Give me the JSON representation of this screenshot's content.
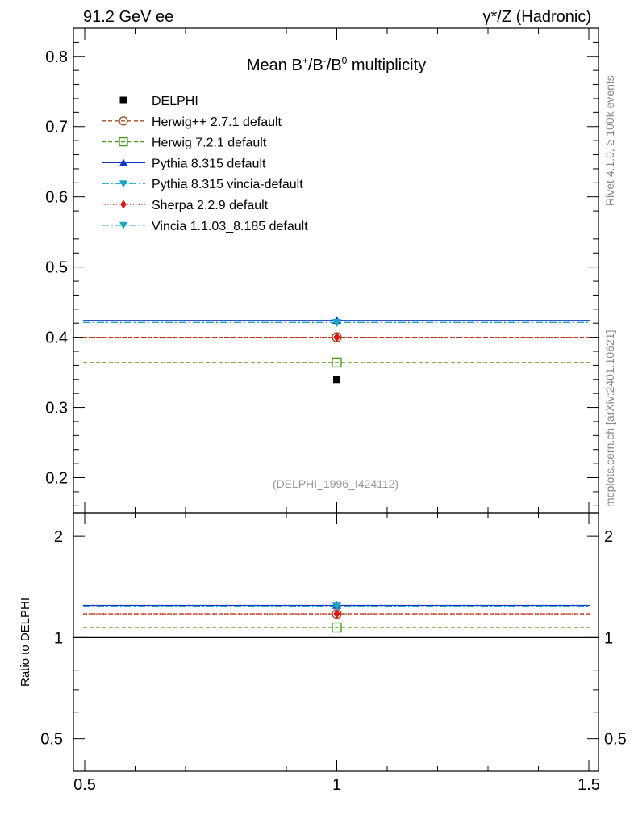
{
  "header": {
    "left": "91.2 GeV ee",
    "right": "γ*/Z (Hadronic)"
  },
  "side": {
    "rivet": "Rivet 4.1.0, ≥ 100k events",
    "mcplots": "mcplots.cern.ch [arXiv:2401.10621]"
  },
  "chart_data": {
    "type": "scatter",
    "title": "Mean B⁺/B⁻/B⁰ multiplicity",
    "title_parts": {
      "base": "Mean B",
      "sup1": "+",
      "sep1": "/B",
      "sup2": "-",
      "sep2": "/B",
      "sup3": "0",
      "tail": " multiplicity"
    },
    "analysis_label": "(DELPHI_1996_I424112)",
    "x": {
      "range": [
        0.5,
        1.5
      ],
      "ticks": [
        0.5,
        1,
        1.5
      ],
      "tick_labels": [
        "0.5",
        "1",
        "1.5"
      ]
    },
    "main": {
      "ylim": [
        0.15,
        0.84
      ],
      "ticks": [
        0.2,
        0.3,
        0.4,
        0.5,
        0.6,
        0.7,
        0.8
      ],
      "tick_labels": [
        "0.2",
        "0.3",
        "0.4",
        "0.5",
        "0.6",
        "0.7",
        "0.8"
      ]
    },
    "ratio": {
      "ylabel": "Ratio to DELPHI",
      "scale": "log",
      "ylim": [
        0.4,
        2.35
      ],
      "ticks": [
        0.5,
        1,
        2
      ],
      "tick_labels": [
        "0.5",
        "1",
        "2"
      ],
      "reference": 1.0
    },
    "data": {
      "name": "DELPHI",
      "x": 1.0,
      "y": 0.34,
      "color": "#000000"
    },
    "series": [
      {
        "name": "Herwig++ 2.7.1 default",
        "value": 0.4,
        "ratio": 1.176,
        "color": "#a0522d",
        "dash": "5,3",
        "marker": "circle-open"
      },
      {
        "name": "Herwig 7.2.1 default",
        "value": 0.364,
        "ratio": 1.071,
        "color": "#4b9a1c",
        "dash": "5,3",
        "marker": "square-open"
      },
      {
        "name": "Pythia 8.315 default",
        "value": 0.424,
        "ratio": 1.247,
        "color": "#1637c9",
        "dash": "",
        "marker": "triangle-up"
      },
      {
        "name": "Pythia 8.315 vincia-default",
        "value": 0.421,
        "ratio": 1.238,
        "color": "#1ba5c4",
        "dash": "9,3,2,3",
        "marker": "triangle-down"
      },
      {
        "name": "Sherpa 2.2.9 default",
        "value": 0.4,
        "ratio": 1.177,
        "color": "#e0140c",
        "dash": "1.5,2",
        "marker": "diamond"
      },
      {
        "name": "Vincia 1.1.03_8.185 default",
        "value": 0.421,
        "ratio": 1.239,
        "color": "#1ba5c4",
        "dash": "9,3,2,3",
        "marker": "triangle-down"
      }
    ]
  }
}
